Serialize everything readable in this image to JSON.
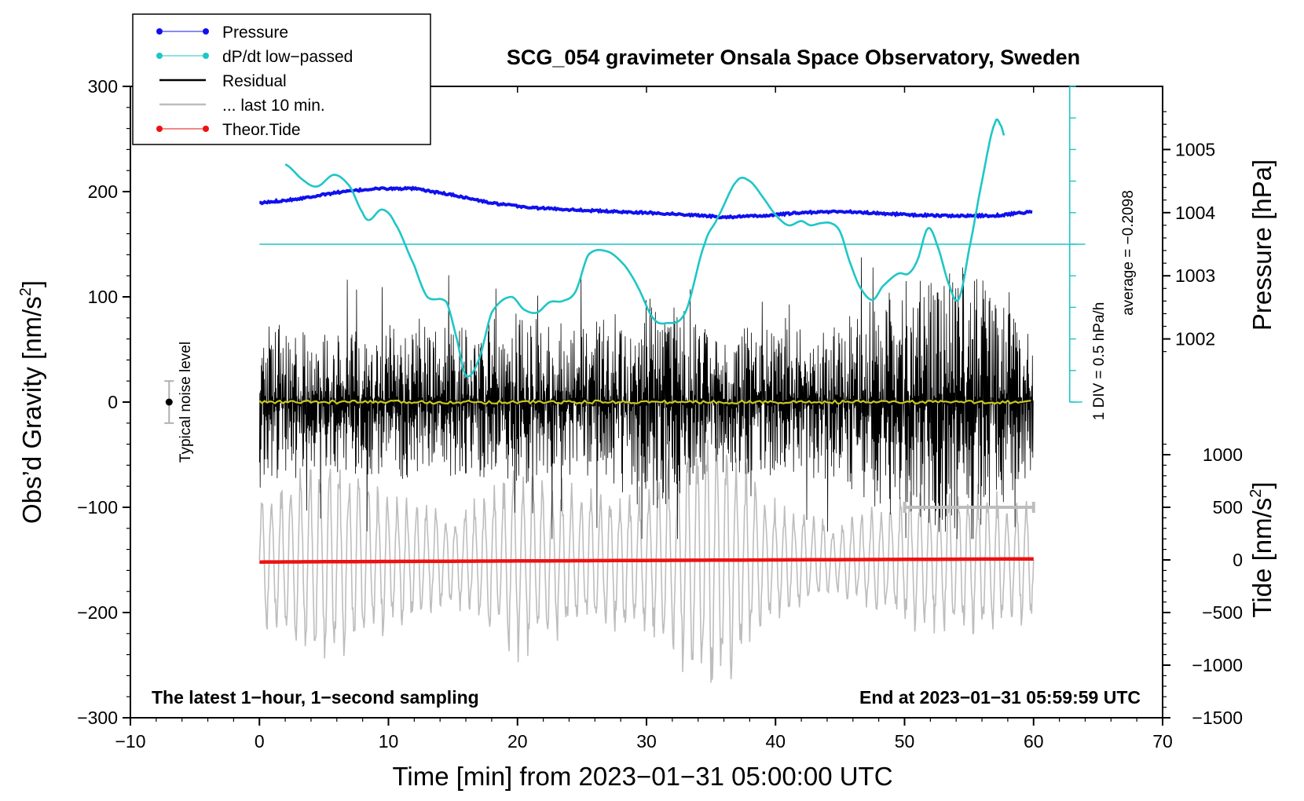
{
  "chart_data": {
    "type": "line",
    "title": "SCG_054 gravimeter Onsala Space Observatory, Sweden",
    "xlabel": "Time [min] from 2023−01−31 05:00:00 UTC",
    "ylabel_left": "Obs’d Gravity [nm/s",
    "ylabel_left_sup": "2",
    "ylabel_left_close": "]",
    "ylabel_right_top": "Pressure [hPa]",
    "ylabel_right_bottom": "Tide [nm/s",
    "ylabel_right_bottom_sup": "2",
    "ylabel_right_bottom_close": "]",
    "xlim": [
      -10,
      70
    ],
    "ylim": [
      -300,
      300
    ],
    "x_ticks": [
      -10,
      0,
      10,
      20,
      30,
      40,
      50,
      60,
      70
    ],
    "x_tick_labels": [
      "−10",
      "0",
      "10",
      "20",
      "30",
      "40",
      "50",
      "60",
      "70"
    ],
    "y_ticks": [
      300,
      200,
      100,
      0,
      -100,
      -200,
      -300
    ],
    "y_tick_labels": [
      "300",
      "200",
      "100",
      "0",
      "−100",
      "−200",
      "−300"
    ],
    "pressure_axis": {
      "ticks": [
        1005,
        1004,
        1003,
        1002
      ],
      "tick_labels": [
        "1005",
        "1004",
        "1003",
        "1002"
      ],
      "note": "1005 hPa at gravity 240, 1 hPa per 60 nm/s2 units"
    },
    "tide_axis": {
      "ticks": [
        1000,
        500,
        0,
        -500,
        -1000,
        -1500
      ],
      "tick_labels": [
        "1000",
        "500",
        "0",
        "−500",
        "−1000",
        "−1500"
      ],
      "note": "0 at gravity -150, 500 nm/s2 per 50 gravity units"
    },
    "dpdt_scale": {
      "div_label": "1 DIV = 0.5 hPa/h",
      "average_label": "average = −0.2098",
      "baseline_gravity": 150,
      "scale_x": 62.8,
      "scale_range": [
        0,
        300
      ]
    },
    "noise_level": {
      "label": "Typical noise level",
      "x": -7,
      "center": 0,
      "half_range": 20
    },
    "window_marker": {
      "x_start": 50,
      "x_end": 60,
      "y": -100
    },
    "legend": [
      {
        "label": "Pressure",
        "color": "#1010ee",
        "marker": true
      },
      {
        "label": "dP/dt low−passed",
        "color": "#1fc6c6",
        "marker": true
      },
      {
        "label": "Residual",
        "color": "#000000",
        "marker": false
      },
      {
        "label": "... last 10 min.",
        "color": "#bdbdbd",
        "marker": false
      },
      {
        "label": "Theor.Tide",
        "color": "#ee1111",
        "marker": true
      }
    ],
    "series": [
      {
        "name": "Pressure",
        "color": "#1010ee",
        "units": "hPa",
        "x": [
          0,
          3,
          6,
          9,
          12,
          15,
          18,
          21,
          24,
          27,
          30,
          33,
          36,
          39,
          42,
          45,
          48,
          51,
          54,
          57,
          60
        ],
        "values": [
          1004.15,
          1004.22,
          1004.32,
          1004.38,
          1004.38,
          1004.28,
          1004.15,
          1004.08,
          1004.05,
          1004.02,
          1004.0,
          1003.97,
          1003.93,
          1003.95,
          1004.0,
          1004.02,
          1003.99,
          1003.96,
          1003.95,
          1003.95,
          1004.02
        ]
      },
      {
        "name": "dP/dt low−passed",
        "color": "#1fc6c6",
        "units": "gravity axis units",
        "x": [
          2,
          3.5,
          4.5,
          5.8,
          7,
          8,
          8.5,
          9.5,
          10.5,
          12,
          13,
          14.5,
          15.3,
          16,
          17,
          18,
          19.5,
          20.5,
          21.5,
          22.5,
          23.5,
          24.5,
          25.5,
          27,
          28.3,
          29.3,
          30.5,
          31.5,
          33,
          34.5,
          35.5,
          37,
          38,
          39,
          40,
          41,
          42,
          42.7,
          43.5,
          44.3,
          45,
          45.7,
          46.5,
          47.5,
          48.3,
          49.5,
          50.3,
          51,
          51.8,
          52.5,
          53.5,
          54.2,
          55,
          56,
          57,
          57.5,
          57.8
        ],
        "values": [
          226,
          210,
          205,
          216,
          205,
          180,
          173,
          183,
          170,
          130,
          100,
          95,
          60,
          25,
          40,
          85,
          100,
          88,
          85,
          95,
          96,
          105,
          140,
          143,
          130,
          110,
          80,
          75,
          85,
          150,
          175,
          210,
          210,
          195,
          178,
          168,
          172,
          168,
          170,
          170,
          162,
          135,
          110,
          97,
          110,
          122,
          122,
          135,
          165,
          150,
          110,
          98,
          145,
          210,
          265,
          262,
          250
        ]
      },
      {
        "name": "Residual",
        "color": "#000000",
        "note": "1-second sampling, amplitude envelope in nm/s2",
        "x": [
          0,
          5,
          10,
          15,
          20,
          25,
          30,
          35,
          40,
          45,
          50,
          55,
          60
        ],
        "envelope": [
          80,
          65,
          75,
          70,
          85,
          70,
          110,
          70,
          70,
          75,
          120,
          130,
          65
        ]
      },
      {
        "name": "Residual low-passed",
        "color": "#c8c81e",
        "x": [
          0,
          60
        ],
        "values": [
          0,
          0
        ]
      },
      {
        "name": "... last 10 min.",
        "color": "#bdbdbd",
        "note": "residual of last 10 min stretched over full width, centered at -150",
        "center": -150,
        "x": [
          0,
          5,
          10,
          15,
          20,
          25,
          30,
          35,
          40,
          45,
          50,
          55,
          60
        ],
        "envelope": [
          65,
          110,
          70,
          45,
          100,
          70,
          75,
          140,
          60,
          35,
          70,
          75,
          60
        ]
      },
      {
        "name": "Theor.Tide",
        "color": "#ee1111",
        "units": "nm/s2",
        "x": [
          0,
          10,
          20,
          30,
          40,
          50,
          60
        ],
        "values": [
          -20,
          -15,
          -10,
          -5,
          0,
          5,
          10
        ]
      }
    ],
    "corner_left": "The latest 1−hour, 1−second sampling",
    "corner_right": "End at 2023−01−31 05:59:59 UTC"
  }
}
